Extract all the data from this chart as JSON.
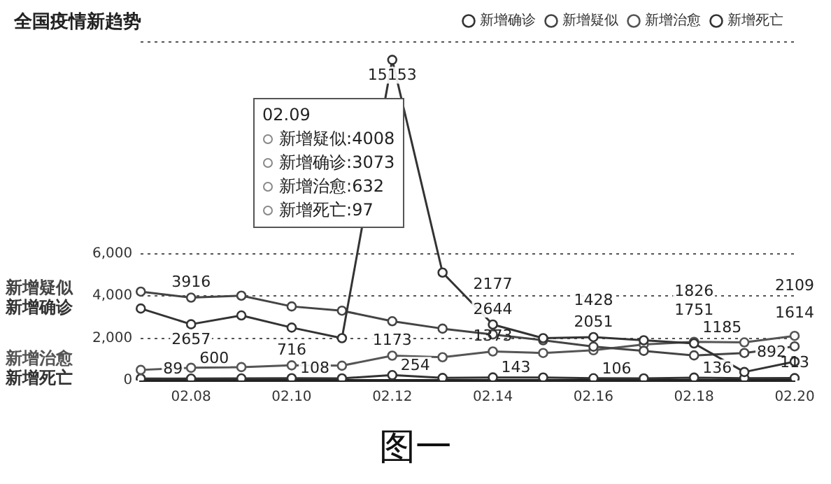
{
  "chart_data": {
    "type": "line",
    "title": "全国疫情新趋势",
    "categories": [
      null,
      "02.08",
      null,
      "02.10",
      null,
      "02.12",
      null,
      "02.14",
      null,
      "02.16",
      null,
      "02.18",
      null,
      "02.20"
    ],
    "series": [
      {
        "name": "新增确诊",
        "color": "#333333",
        "values": [
          3400,
          2657,
          3073,
          2500,
          2000,
          15153,
          5100,
          2644,
          2000,
          2051,
          1900,
          1751,
          400,
          892
        ],
        "value_labels": [
          null,
          "2657",
          null,
          null,
          null,
          "15153",
          null,
          "2644",
          null,
          "2051",
          null,
          "1751",
          null,
          "892"
        ]
      },
      {
        "name": "新增疑似",
        "color": "#444444",
        "values": [
          4200,
          3916,
          4008,
          3500,
          3300,
          2800,
          2450,
          2177,
          1900,
          1600,
          1400,
          1185,
          1300,
          1614
        ],
        "value_labels": [
          null,
          "3916",
          null,
          null,
          null,
          null,
          null,
          "2177",
          null,
          null,
          null,
          "1185",
          null,
          "1614"
        ]
      },
      {
        "name": "新增治愈",
        "color": "#555555",
        "values": [
          500,
          600,
          632,
          716,
          700,
          1173,
          1100,
          1373,
          1300,
          1428,
          1700,
          1826,
          1800,
          2109
        ],
        "value_labels": [
          null,
          "600",
          null,
          "716",
          null,
          "1173",
          null,
          "1373",
          null,
          "1428",
          null,
          "1826",
          null,
          "2109"
        ]
      },
      {
        "name": "新增死亡",
        "color": "#333333",
        "values": [
          90,
          89,
          97,
          108,
          100,
          254,
          120,
          143,
          140,
          106,
          100,
          136,
          110,
          113
        ],
        "value_labels": [
          null,
          "89",
          null,
          "108",
          null,
          "254",
          null,
          "143",
          null,
          "106",
          null,
          "136",
          null,
          "113"
        ]
      }
    ],
    "ylim": [
      0,
      16000
    ],
    "yticks": [
      0,
      {
        "value": 2000,
        "label": "2,000"
      },
      {
        "value": 4000,
        "label": "4,000"
      },
      {
        "value": 6000,
        "label": "6,000"
      },
      {
        "value": 16000,
        "label": null
      }
    ],
    "grid": "y",
    "legend": "top right",
    "marker": "circle",
    "line_style": "solid",
    "annotations": [
      "02.09",
      "新增疑似:4008",
      "新增确诊:3073",
      "新增治愈:632",
      "新增死亡:97",
      "图一"
    ]
  }
}
